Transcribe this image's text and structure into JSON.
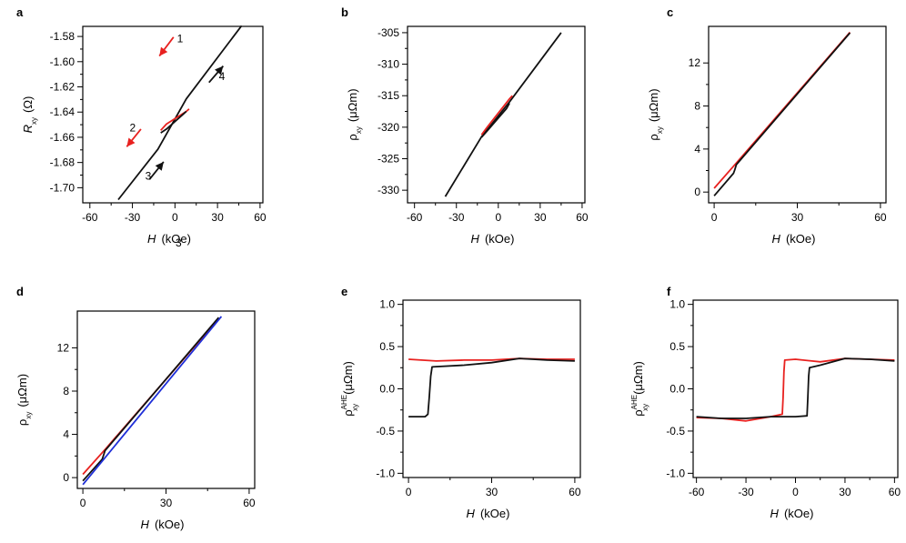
{
  "colors": {
    "red": "#e8211f",
    "black": "#111111",
    "blue": "#1f2fd8"
  },
  "chart_data": [
    {
      "panel": "a",
      "type": "line",
      "xlabel_main": "H",
      "xlabel_unit": "(kOe)",
      "ylabel_main": "R",
      "ylabel_sub": "xy",
      "ylabel_sup": "",
      "ylabel_unit": "(Ω)",
      "xlim": [
        -65,
        62
      ],
      "ylim": [
        -1.712,
        -1.572
      ],
      "xticks": [
        -60,
        -30,
        0,
        30,
        60
      ],
      "yticks": [
        -1.7,
        -1.68,
        -1.66,
        -1.64,
        -1.62,
        -1.6,
        -1.58
      ],
      "ytick_labels": [
        "-1.70",
        "-1.68",
        "-1.66",
        "-1.64",
        "-1.62",
        "-1.60",
        "-1.58"
      ],
      "extra_label": "3",
      "series": [
        {
          "color": "black",
          "x": [
            -40,
            -12,
            8,
            47
          ],
          "y": [
            -1.7095,
            -1.6695,
            -1.6295,
            -1.5715
          ]
        },
        {
          "color": "red",
          "x": [
            -10,
            -6,
            8,
            10
          ],
          "y": [
            -1.6545,
            -1.6495,
            -1.6395,
            -1.6375
          ]
        },
        {
          "color": "black",
          "x": [
            -10,
            -6,
            6,
            8
          ],
          "y": [
            -1.6565,
            -1.6535,
            -1.6415,
            -1.6395
          ]
        }
      ],
      "annotations": [
        {
          "text": "1",
          "color": "red",
          "x": 1.5,
          "y": -1.5845,
          "arrow": [
            [
              -1,
              -1.5805
            ],
            [
              -11,
              -1.5955
            ]
          ]
        },
        {
          "text": "2",
          "color": "red",
          "x": -32,
          "y": -1.6555,
          "arrow": [
            [
              -24,
              -1.6535
            ],
            [
              -34,
              -1.6675
            ]
          ]
        },
        {
          "text": "3",
          "color": "black",
          "x": -21,
          "y": -1.6935,
          "arrow": [
            [
              -18,
              -1.6935
            ],
            [
              -8,
              -1.6795
            ]
          ]
        },
        {
          "text": "4",
          "color": "black",
          "x": 31,
          "y": -1.6145,
          "arrow": [
            [
              24,
              -1.6165
            ],
            [
              34,
              -1.6035
            ]
          ]
        }
      ]
    },
    {
      "panel": "b",
      "type": "line",
      "xlabel_main": "H",
      "xlabel_unit": "(kOe)",
      "ylabel_main": "ρ",
      "ylabel_sub": "xy",
      "ylabel_sup": "",
      "ylabel_unit": "(μΩm)",
      "xlim": [
        -65,
        62
      ],
      "ylim": [
        -332,
        -304
      ],
      "xticks": [
        -60,
        -30,
        0,
        30,
        60
      ],
      "yticks": [
        -330,
        -325,
        -320,
        -315,
        -310,
        -305
      ],
      "ytick_labels": [
        "-330",
        "-325",
        "-320",
        "-315",
        "-310",
        "-305"
      ],
      "series": [
        {
          "color": "black",
          "x": [
            -38,
            -12,
            8,
            45
          ],
          "y": [
            -331,
            -321.5,
            -316,
            -305
          ]
        },
        {
          "color": "red",
          "x": [
            -12,
            -8,
            8,
            10
          ],
          "y": [
            -321.2,
            -320,
            -315.5,
            -315
          ]
        },
        {
          "color": "black",
          "x": [
            -12,
            -8,
            6,
            8
          ],
          "y": [
            -321.6,
            -320.6,
            -317,
            -316.2
          ]
        }
      ]
    },
    {
      "panel": "c",
      "type": "line",
      "xlabel_main": "H",
      "xlabel_unit": "(kOe)",
      "ylabel_main": "ρ",
      "ylabel_sub": "xy",
      "ylabel_sup": "",
      "ylabel_unit": "(μΩm)",
      "xlim": [
        -2,
        62
      ],
      "ylim": [
        -1,
        15.4
      ],
      "xticks": [
        0,
        30,
        60
      ],
      "yticks": [
        0,
        4,
        8,
        12
      ],
      "ytick_labels": [
        "0",
        "4",
        "8",
        "12"
      ],
      "series": [
        {
          "color": "red",
          "x": [
            0,
            8,
            49
          ],
          "y": [
            0.35,
            2.7,
            14.85
          ]
        },
        {
          "color": "black",
          "x": [
            0,
            7,
            7.5,
            8,
            49
          ],
          "y": [
            -0.35,
            1.75,
            2.1,
            2.55,
            14.8
          ]
        }
      ]
    },
    {
      "panel": "d",
      "type": "line",
      "xlabel_main": "H",
      "xlabel_unit": "(kOe)",
      "ylabel_main": "ρ",
      "ylabel_sub": "xy",
      "ylabel_sup": "",
      "ylabel_unit": "(μΩm)",
      "xlim": [
        -2,
        62
      ],
      "ylim": [
        -1,
        15.4
      ],
      "xticks": [
        0,
        30,
        60
      ],
      "yticks": [
        0,
        4,
        8,
        12
      ],
      "ytick_labels": [
        "0",
        "4",
        "8",
        "12"
      ],
      "series": [
        {
          "color": "red",
          "x": [
            0,
            8,
            49
          ],
          "y": [
            0.3,
            2.6,
            14.7
          ]
        },
        {
          "color": "black",
          "x": [
            0,
            7,
            8,
            49
          ],
          "y": [
            -0.3,
            1.7,
            2.5,
            14.8
          ]
        },
        {
          "color": "blue",
          "x": [
            0,
            50
          ],
          "y": [
            -0.65,
            14.9
          ]
        }
      ]
    },
    {
      "panel": "e",
      "type": "line",
      "xlabel_main": "H",
      "xlabel_unit": "(kOe)",
      "ylabel_main": "ρ",
      "ylabel_sub": "xy",
      "ylabel_sup": "AHE",
      "ylabel_unit": "(μΩm)",
      "xlim": [
        -2,
        62
      ],
      "ylim": [
        -1.05,
        1.05
      ],
      "xticks": [
        0,
        30,
        60
      ],
      "yticks": [
        -1.0,
        -0.5,
        0.0,
        0.5,
        1.0
      ],
      "ytick_labels": [
        "-1.0",
        "-0.5",
        "0.0",
        "0.5",
        "1.0"
      ],
      "series": [
        {
          "color": "red",
          "x": [
            0,
            10,
            20,
            30,
            40,
            50,
            60
          ],
          "y": [
            0.35,
            0.33,
            0.34,
            0.34,
            0.36,
            0.35,
            0.35
          ]
        },
        {
          "color": "black",
          "x": [
            0,
            6,
            7,
            7.5,
            8,
            8.5,
            20,
            30,
            40,
            50,
            60
          ],
          "y": [
            -0.33,
            -0.33,
            -0.3,
            -0.1,
            0.15,
            0.26,
            0.28,
            0.31,
            0.36,
            0.34,
            0.33
          ]
        }
      ]
    },
    {
      "panel": "f",
      "type": "line",
      "xlabel_main": "H",
      "xlabel_unit": "(kOe)",
      "ylabel_main": "ρ",
      "ylabel_sub": "xy",
      "ylabel_sup": "AHE",
      "ylabel_unit": "(μΩm)",
      "xlim": [
        -62,
        62
      ],
      "ylim": [
        -1.05,
        1.05
      ],
      "xticks": [
        -60,
        -30,
        0,
        30,
        60
      ],
      "yticks": [
        -1.0,
        -0.5,
        0.0,
        0.5,
        1.0
      ],
      "ytick_labels": [
        "-1.0",
        "-0.5",
        "0.0",
        "0.5",
        "1.0"
      ],
      "series": [
        {
          "color": "red",
          "x": [
            -60,
            -45,
            -30,
            -15,
            -8,
            -7.5,
            -7,
            -6.5,
            0,
            15,
            30,
            45,
            60
          ],
          "y": [
            -0.34,
            -0.35,
            -0.38,
            -0.33,
            -0.3,
            -0.1,
            0.2,
            0.34,
            0.35,
            0.32,
            0.36,
            0.35,
            0.34
          ]
        },
        {
          "color": "black",
          "x": [
            -60,
            -45,
            -30,
            -15,
            0,
            7,
            7.5,
            8,
            8.5,
            15,
            30,
            45,
            60
          ],
          "y": [
            -0.33,
            -0.35,
            -0.35,
            -0.33,
            -0.33,
            -0.32,
            -0.1,
            0.15,
            0.25,
            0.28,
            0.36,
            0.35,
            0.33
          ]
        }
      ]
    }
  ]
}
